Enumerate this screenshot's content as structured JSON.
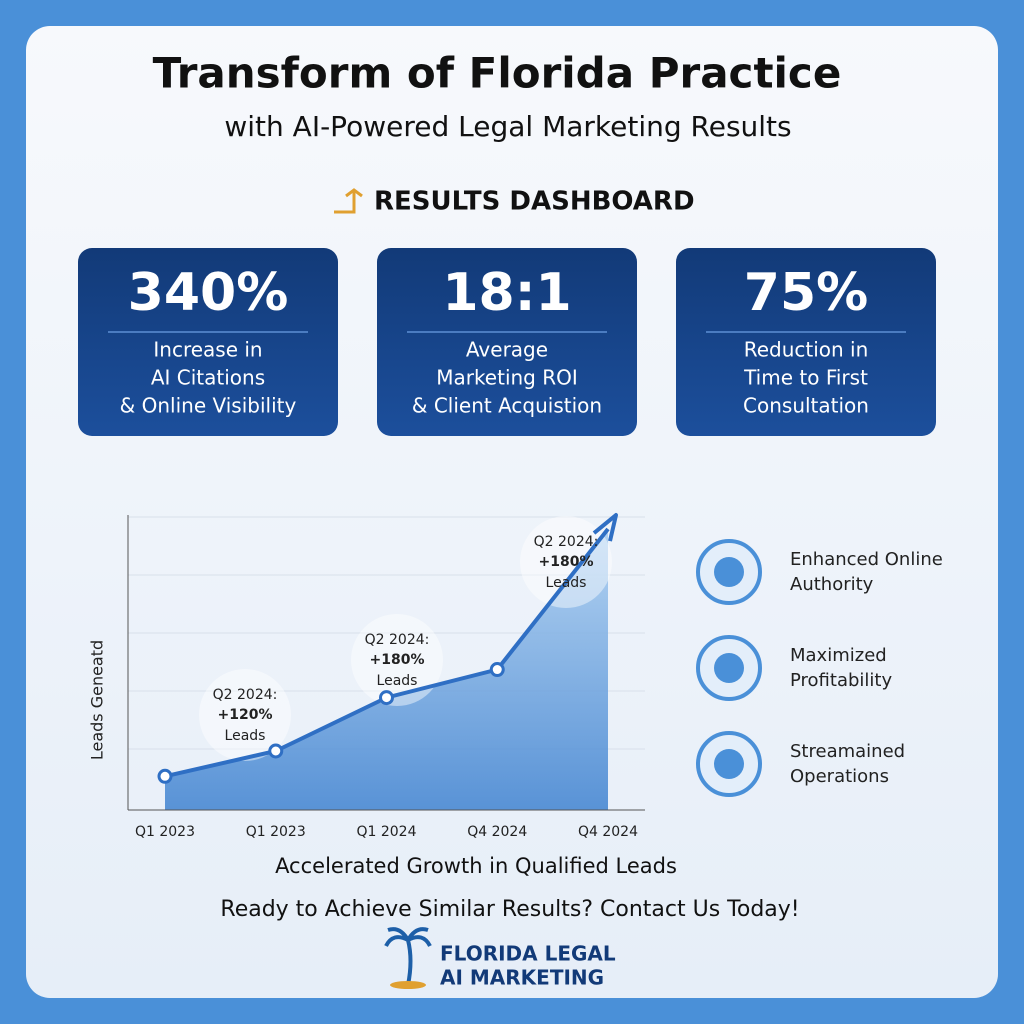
{
  "header": {
    "title": "Transform of Florida Practice",
    "subtitle": "with AI-Powered Legal Marketing Results",
    "section": "RESULTS DASHBOARD"
  },
  "stats": [
    {
      "value": "340%",
      "lines": [
        "Increase in",
        "AI Citations",
        "& Online Visibility"
      ]
    },
    {
      "value": "18:1",
      "lines": [
        "Average",
        "Marketing ROI",
        "& Client Acquistion"
      ]
    },
    {
      "value": "75%",
      "lines": [
        "Reduction in",
        "Time to First",
        "Consultation"
      ]
    }
  ],
  "chart_data": {
    "type": "line",
    "categories": [
      "Q1 2023",
      "Q1 2023",
      "Q1 2024",
      "Q4 2024",
      "Q4 2024"
    ],
    "values": [
      12,
      21,
      40,
      50,
      100
    ],
    "color": "#2f6fc4",
    "ylim": [
      0,
      105
    ],
    "ylabel": "Leads Geneatd",
    "xlabel": "Accelerated Growth in Qualified Leads",
    "annotations": [
      {
        "title": "Q2 2024:",
        "value": "+120%",
        "label": "Leads"
      },
      {
        "title": "Q2 2024:",
        "value": "+180%",
        "label": "Leads"
      },
      {
        "title": "Q2 2024:",
        "value": "+180%",
        "label": "Leads"
      }
    ]
  },
  "features": [
    [
      "Enhanced Online",
      "Authority"
    ],
    [
      "Maximized",
      "Profitability"
    ],
    [
      "Streamained",
      "Operations"
    ]
  ],
  "cta": "Ready to Achieve Similar Results? Contact Us Today!",
  "logo": [
    "FLORIDA LEGAL",
    "AI MARKETING"
  ]
}
